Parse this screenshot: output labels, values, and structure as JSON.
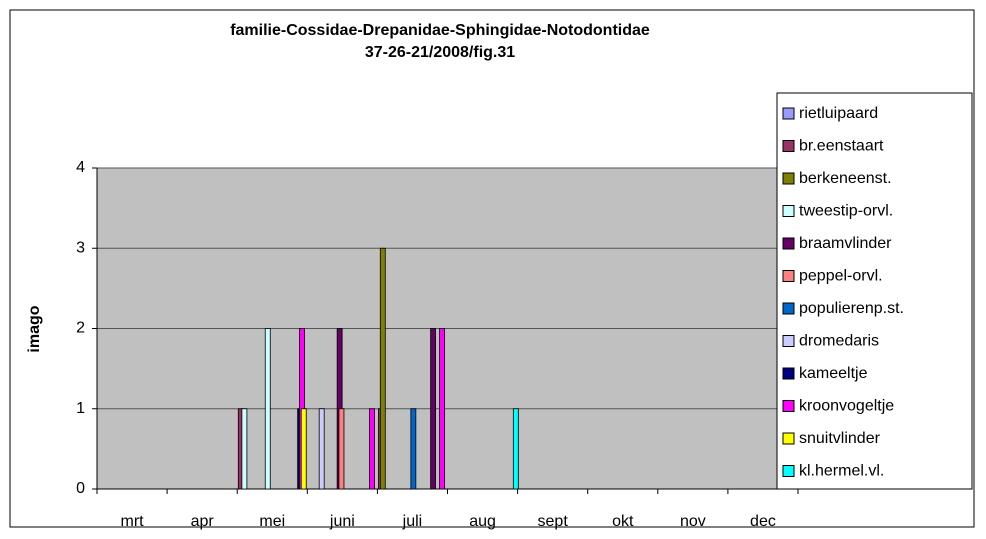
{
  "chart_data": {
    "type": "bar",
    "title": "familie-Cossidae-Drepanidae-Sphingidae-Notodontidae",
    "subtitle": "37-26-21/2008/fig.31",
    "y_label": "imago",
    "categories": [
      null,
      "mrt",
      null,
      null,
      "apr",
      null,
      null,
      "mei",
      null,
      null,
      "juni",
      null,
      null,
      "juli",
      null,
      null,
      "aug",
      null,
      null,
      "sept",
      null,
      null,
      "okt",
      null,
      null,
      "nov",
      null,
      null,
      "dec",
      null
    ],
    "ylim": [
      0,
      4
    ],
    "yticks": [
      0,
      1,
      2,
      3,
      4
    ],
    "grid": true,
    "legend": "right",
    "series": [
      {
        "name": "rietluipaard",
        "color": "#9999ff",
        "values": [
          0,
          0,
          0,
          0,
          0,
          0,
          0,
          0,
          0,
          0,
          0,
          0,
          0,
          0,
          0,
          0,
          0,
          0,
          0,
          0,
          0,
          0,
          0,
          0,
          0,
          0,
          0,
          0,
          0,
          0
        ]
      },
      {
        "name": "br.eenstaart",
        "color": "#993366",
        "values": [
          0,
          0,
          0,
          0,
          0,
          0,
          1,
          0,
          0,
          0,
          0,
          0,
          1,
          0,
          0,
          0,
          0,
          0,
          0,
          0,
          0,
          0,
          0,
          0,
          0,
          0,
          0,
          0,
          0,
          0
        ]
      },
      {
        "name": "berkeneenst.",
        "color": "#808000",
        "values": [
          0,
          0,
          0,
          0,
          0,
          0,
          0,
          0,
          0,
          0,
          0,
          0,
          3,
          0,
          0,
          0,
          0,
          0,
          0,
          0,
          0,
          0,
          0,
          0,
          0,
          0,
          0,
          0,
          0,
          0
        ]
      },
      {
        "name": "tweestip-orvl.",
        "color": "#ccffff",
        "values": [
          0,
          0,
          0,
          0,
          0,
          0,
          1,
          2,
          0,
          0,
          0,
          0,
          0,
          0,
          0,
          0,
          0,
          0,
          0,
          0,
          0,
          0,
          0,
          0,
          0,
          0,
          0,
          0,
          0,
          0
        ]
      },
      {
        "name": "braamvlinder",
        "color": "#660066",
        "values": [
          0,
          0,
          0,
          0,
          0,
          0,
          0,
          0,
          0,
          0,
          2,
          0,
          0,
          0,
          2,
          0,
          0,
          0,
          0,
          0,
          0,
          0,
          0,
          0,
          0,
          0,
          0,
          0,
          0,
          0
        ]
      },
      {
        "name": "peppel-orvl.",
        "color": "#ff8080",
        "values": [
          0,
          0,
          0,
          0,
          0,
          0,
          0,
          0,
          0,
          0,
          1,
          0,
          0,
          0,
          0,
          0,
          0,
          0,
          0,
          0,
          0,
          0,
          0,
          0,
          0,
          0,
          0,
          0,
          0,
          0
        ]
      },
      {
        "name": "populierenp.st.",
        "color": "#0066cc",
        "values": [
          0,
          0,
          0,
          0,
          0,
          0,
          0,
          0,
          0,
          0,
          0,
          0,
          0,
          1,
          0,
          0,
          0,
          0,
          0,
          0,
          0,
          0,
          0,
          0,
          0,
          0,
          0,
          0,
          0,
          0
        ]
      },
      {
        "name": "dromedaris",
        "color": "#ccccff",
        "values": [
          0,
          0,
          0,
          0,
          0,
          0,
          0,
          0,
          0,
          1,
          0,
          0,
          0,
          0,
          0,
          0,
          0,
          0,
          0,
          0,
          0,
          0,
          0,
          0,
          0,
          0,
          0,
          0,
          0,
          0
        ]
      },
      {
        "name": "kameeltje",
        "color": "#000080",
        "values": [
          0,
          0,
          0,
          0,
          0,
          0,
          0,
          0,
          1,
          0,
          0,
          0,
          0,
          0,
          0,
          0,
          0,
          0,
          0,
          0,
          0,
          0,
          0,
          0,
          0,
          0,
          0,
          0,
          0,
          0
        ]
      },
      {
        "name": "kroonvogeltje",
        "color": "#ff00ff",
        "values": [
          0,
          0,
          0,
          0,
          0,
          0,
          0,
          0,
          2,
          0,
          0,
          1,
          0,
          0,
          2,
          0,
          0,
          0,
          0,
          0,
          0,
          0,
          0,
          0,
          0,
          0,
          0,
          0,
          0,
          0
        ]
      },
      {
        "name": "snuitvlinder",
        "color": "#ffff00",
        "values": [
          0,
          0,
          0,
          0,
          0,
          0,
          0,
          0,
          1,
          0,
          0,
          0,
          0,
          0,
          0,
          0,
          0,
          0,
          0,
          0,
          0,
          0,
          0,
          0,
          0,
          0,
          0,
          0,
          0,
          0
        ]
      },
      {
        "name": "kl.hermel.vl.",
        "color": "#00ffff",
        "values": [
          0,
          0,
          0,
          0,
          0,
          0,
          0,
          0,
          0,
          0,
          0,
          0,
          0,
          0,
          0,
          0,
          0,
          1,
          0,
          0,
          0,
          0,
          0,
          0,
          0,
          0,
          0,
          0,
          0,
          0
        ]
      }
    ]
  }
}
